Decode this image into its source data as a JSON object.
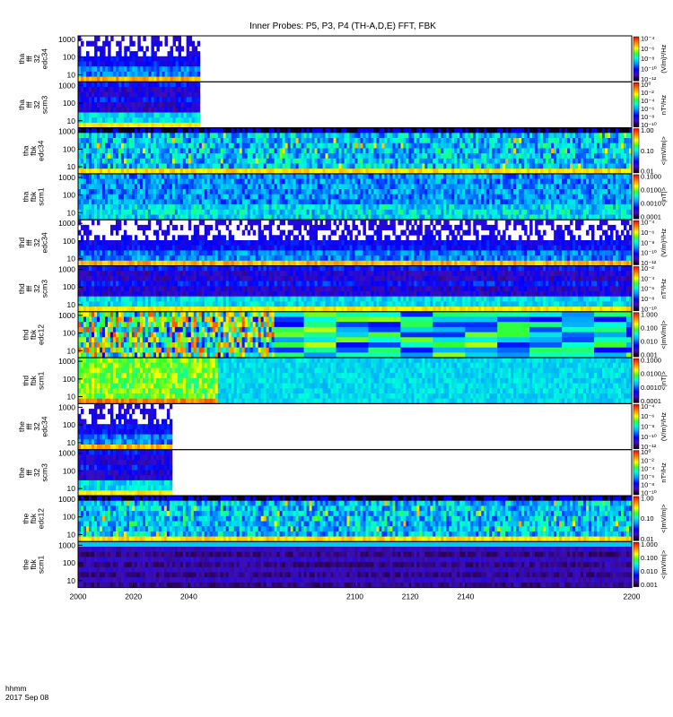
{
  "chart_data": {
    "type": "heatmap",
    "title": "Inner Probes: P5, P3, P4 (TH-A,D,E) FFT, FBK",
    "x_axis": {
      "range": [
        2000,
        2200
      ],
      "ticks": [
        "2000",
        "2020",
        "2040",
        "2100",
        "2120",
        "2140",
        "2200"
      ],
      "label_lines": [
        "hhmm",
        "2017 Sep 08"
      ]
    },
    "y_ticks": [
      "10",
      "100",
      "1000"
    ],
    "panels": [
      {
        "label": [
          "tha",
          "fff",
          "32",
          "edc34"
        ],
        "data_end": 2044,
        "cbar_unit": "(V/m)²/Hz",
        "cbar_ticks": [
          "10⁻¹²",
          "10⁻¹⁰",
          "10⁻⁸",
          "10⁻⁶",
          "10⁻⁴"
        ],
        "pattern": "fff_e"
      },
      {
        "label": [
          "tha",
          "fff",
          "32",
          "scm3"
        ],
        "data_end": 2044,
        "cbar_unit": "nT²/Hz",
        "cbar_ticks": [
          "10⁻¹⁰",
          "10⁻⁸",
          "10⁻⁶",
          "10⁻⁴",
          "10⁻²",
          "10⁰"
        ],
        "pattern": "fff_b"
      },
      {
        "label": [
          "tha",
          "fbk",
          "edc34"
        ],
        "data_end": 2200,
        "cbar_unit": "<|mV/m|>",
        "cbar_ticks": [
          "0.01",
          "0.10",
          "1.00"
        ],
        "pattern": "fbk_e"
      },
      {
        "label": [
          "tha",
          "fbk",
          "scm1"
        ],
        "data_end": 2200,
        "cbar_unit": "<|nT|>",
        "cbar_ticks": [
          "0.0001",
          "0.0010",
          "0.0100",
          "0.1000"
        ],
        "pattern": "fbk_b"
      },
      {
        "label": [
          "thd",
          "fff",
          "32",
          "edc34"
        ],
        "data_end": 2200,
        "cbar_unit": "(V/m)²/Hz",
        "cbar_ticks": [
          "10⁻¹²",
          "10⁻¹⁰",
          "10⁻⁸",
          "10⁻⁶",
          "10⁻⁴"
        ],
        "pattern": "fff_e"
      },
      {
        "label": [
          "thd",
          "fff",
          "32",
          "scm3"
        ],
        "data_end": 2200,
        "cbar_unit": "nT²/Hz",
        "cbar_ticks": [
          "10⁻¹⁰",
          "10⁻⁸",
          "10⁻⁶",
          "10⁻⁴",
          "10⁻²"
        ],
        "pattern": "fff_b"
      },
      {
        "label": [
          "thd",
          "fbk",
          "edc12"
        ],
        "data_end": 2200,
        "cbar_unit": "<|mV/m|>",
        "cbar_ticks": [
          "0.001",
          "0.010",
          "0.100",
          "1.000"
        ],
        "pattern": "fbk_blocks"
      },
      {
        "label": [
          "thd",
          "fbk",
          "scm1"
        ],
        "data_end": 2200,
        "cbar_unit": "<|nT|>",
        "cbar_ticks": [
          "0.0001",
          "0.0010",
          "0.0100",
          "0.1000"
        ],
        "pattern": "fbk_b2"
      },
      {
        "label": [
          "the",
          "fff",
          "32",
          "edc34"
        ],
        "data_end": 2034,
        "cbar_unit": "(V/m)²/Hz",
        "cbar_ticks": [
          "10⁻¹²",
          "10⁻¹⁰",
          "10⁻⁸",
          "10⁻⁶",
          "10⁻⁴"
        ],
        "pattern": "fff_e"
      },
      {
        "label": [
          "the",
          "fff",
          "32",
          "scm3"
        ],
        "data_end": 2034,
        "cbar_unit": "nT²/Hz",
        "cbar_ticks": [
          "10⁻¹⁰",
          "10⁻⁸",
          "10⁻⁶",
          "10⁻⁴",
          "10⁻²",
          "10⁰"
        ],
        "pattern": "fff_b"
      },
      {
        "label": [
          "the",
          "fbk",
          "edc12"
        ],
        "data_end": 2200,
        "cbar_unit": "<|mV/m|>",
        "cbar_ticks": [
          "0.01",
          "0.10",
          "1.00"
        ],
        "pattern": "fbk_e"
      },
      {
        "label": [
          "the",
          "fbk",
          "scm1"
        ],
        "data_end": 2200,
        "cbar_unit": "<|mV/m|>",
        "cbar_ticks": [
          "0.001",
          "0.010",
          "0.100",
          "1.000"
        ],
        "pattern": "fbk_quiet"
      }
    ]
  }
}
